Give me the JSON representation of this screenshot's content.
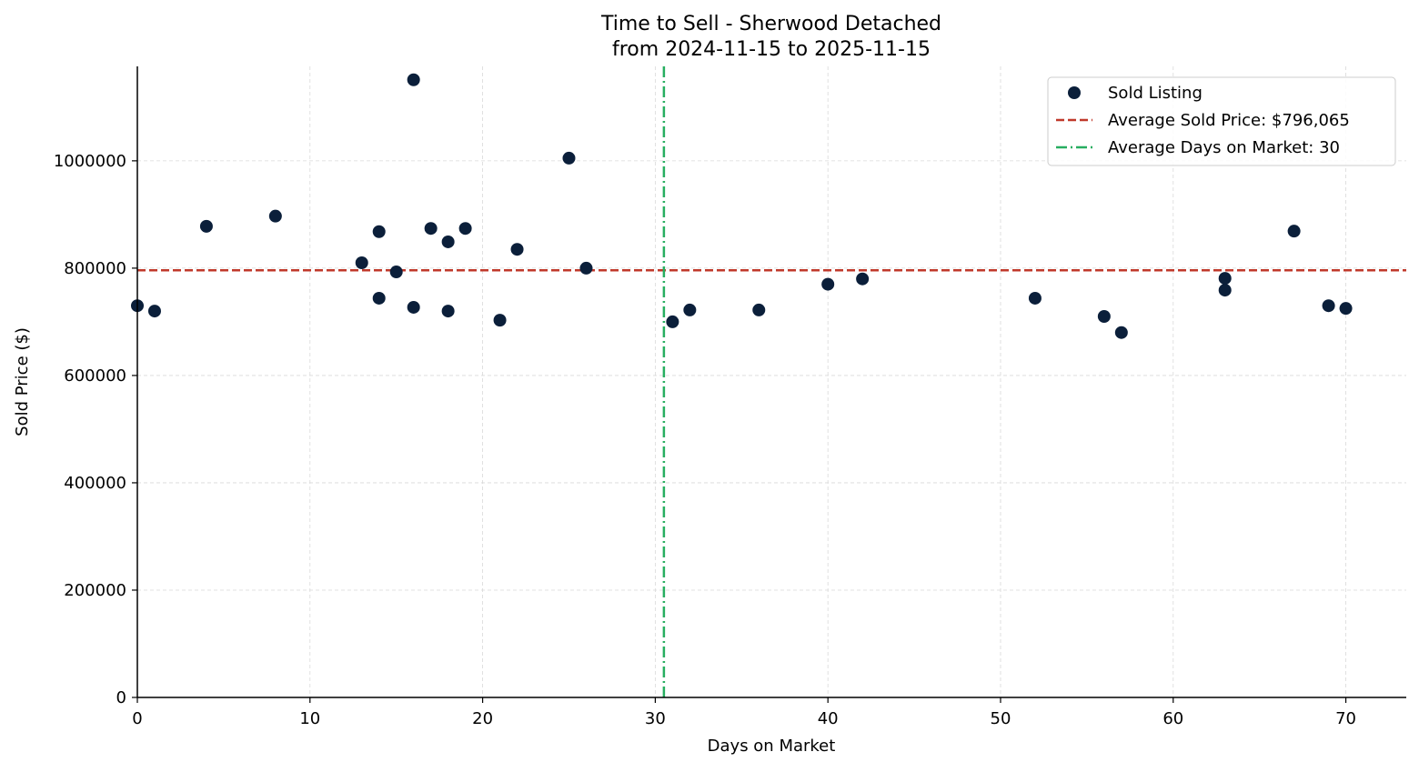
{
  "chart_data": {
    "type": "scatter",
    "title": "Time to Sell - Sherwood Detached",
    "subtitle": "from 2024-11-15 to 2025-11-15",
    "xlabel": "Days on Market",
    "ylabel": "Sold Price ($)",
    "xlim": [
      0,
      73.5
    ],
    "ylim": [
      0,
      1176000
    ],
    "xticks": [
      0,
      10,
      20,
      30,
      40,
      50,
      60,
      70
    ],
    "yticks": [
      0,
      200000,
      400000,
      600000,
      800000,
      1000000
    ],
    "grid": true,
    "legend_position": "top-right",
    "colors": {
      "points": "#0b1f3a",
      "avg_price": "#c0392b",
      "avg_days": "#27ae60",
      "grid": "#d9d9d9"
    },
    "series": [
      {
        "name": "Sold Listing",
        "points": [
          [
            0,
            730000
          ],
          [
            1,
            720000
          ],
          [
            4,
            878000
          ],
          [
            8,
            897000
          ],
          [
            13,
            810000
          ],
          [
            14,
            868000
          ],
          [
            14,
            744000
          ],
          [
            15,
            793000
          ],
          [
            16,
            1151000
          ],
          [
            16,
            727000
          ],
          [
            17,
            874000
          ],
          [
            18,
            849000
          ],
          [
            18,
            720000
          ],
          [
            19,
            874000
          ],
          [
            21,
            703000
          ],
          [
            22,
            835000
          ],
          [
            25,
            1005000
          ],
          [
            26,
            800000
          ],
          [
            31,
            700000
          ],
          [
            32,
            722000
          ],
          [
            36,
            722000
          ],
          [
            40,
            770000
          ],
          [
            42,
            780000
          ],
          [
            52,
            744000
          ],
          [
            56,
            710000
          ],
          [
            57,
            680000
          ],
          [
            63,
            781000
          ],
          [
            63,
            759000
          ],
          [
            67,
            869000
          ],
          [
            69,
            730000
          ],
          [
            70,
            725000
          ]
        ]
      }
    ],
    "reference_lines": [
      {
        "name": "Average Sold Price: $796,065",
        "orientation": "horizontal",
        "value": 796065,
        "style": "dashed"
      },
      {
        "name": "Average Days on Market: 30",
        "orientation": "vertical",
        "value": 30.5,
        "style": "dashdot"
      }
    ]
  }
}
